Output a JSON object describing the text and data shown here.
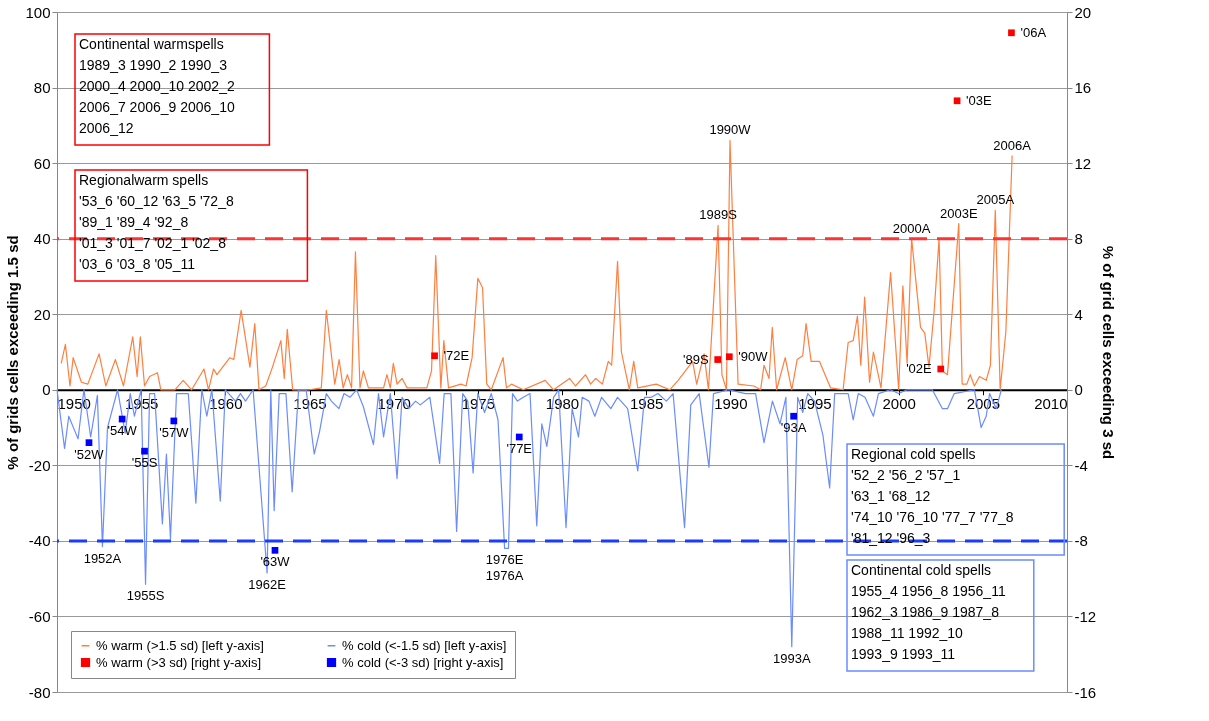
{
  "chart_data": {
    "type": "line",
    "ylabel": "% of grids cells exceeding 1.5 sd",
    "y2label": "% of grid cells exceeding 3 sd",
    "xlim": [
      1950,
      2010
    ],
    "xticks": [
      1950,
      1955,
      1960,
      1965,
      1970,
      1975,
      1980,
      1985,
      1990,
      1995,
      2000,
      2005,
      2010
    ],
    "ylim": [
      -80,
      100
    ],
    "yticks": [
      -80,
      -60,
      -40,
      -20,
      0,
      20,
      40,
      60,
      80,
      100
    ],
    "y2lim": [
      -16,
      20
    ],
    "y2ticks": [
      -16,
      -12,
      -8,
      -4,
      0,
      4,
      8,
      12,
      16,
      20
    ],
    "grid": "y",
    "legend": "bottom left",
    "series": [
      {
        "name": "% warm (>1.5 sd) [left y-axis]",
        "color": "#ff7f3f",
        "x": [
          1950.25,
          1950.5,
          1950.77,
          1950.96,
          1951.45,
          1951.83,
          1952.5,
          1952.9,
          1953.47,
          1953.95,
          1954.5,
          1954.76,
          1954.95,
          1955.2,
          1955.5,
          1955.97,
          1956.17,
          1957.0,
          1957.5,
          1958.0,
          1958.73,
          1959.0,
          1959.3,
          1959.5,
          1960.27,
          1960.5,
          1960.94,
          1961.46,
          1961.75,
          1962.0,
          1962.4,
          1962.8,
          1963.3,
          1963.5,
          1963.68,
          1964.0,
          1965.0,
          1965.7,
          1966.0,
          1966.5,
          1966.76,
          1967.0,
          1967.25,
          1967.5,
          1967.73,
          1968.0,
          1968.2,
          1968.5,
          1969.4,
          1969.6,
          1969.8,
          1969.98,
          1970.2,
          1970.5,
          1970.8,
          1971.97,
          1972.25,
          1972.5,
          1972.8,
          1972.98,
          1973.26,
          1974.0,
          1974.3,
          1974.66,
          1975.0,
          1975.28,
          1975.53,
          1975.8,
          1976.5,
          1976.7,
          1977.0,
          1977.7,
          1979.0,
          1979.5,
          1980.45,
          1980.8,
          1981.4,
          1981.7,
          1982.0,
          1982.4,
          1982.75,
          1982.95,
          1983.3,
          1983.53,
          1984.0,
          1984.26,
          1984.5,
          1985.6,
          1986.4,
          1986.9,
          1987.76,
          1988.0,
          1988.44,
          1988.7,
          1989.27,
          1989.5,
          1989.77,
          1989.98,
          1990.46,
          1991.4,
          1991.8,
          1992.0,
          1992.3,
          1992.49,
          1992.75,
          1993.26,
          1993.65,
          1993.97,
          1994.3,
          1994.5,
          1994.8,
          1995.3,
          1995.67,
          1995.96,
          1996.7,
          1997.0,
          1997.3,
          1997.55,
          1997.75,
          1997.98,
          1998.27,
          1998.5,
          1998.95,
          1999.52,
          2000.0,
          2000.25,
          2000.5,
          2000.77,
          2001.3,
          2001.55,
          2001.8,
          2002.12,
          2002.4,
          2002.6,
          2002.9,
          2003.57,
          2003.77,
          2004.05,
          2004.25,
          2004.5,
          2004.8,
          2005.2,
          2005.45,
          2005.74,
          2006.03,
          2006.37,
          2006.74
        ],
        "values": [
          7,
          12,
          1,
          8.5,
          2,
          1.5,
          9.5,
          1,
          8,
          1,
          14,
          3.5,
          14,
          1,
          3.5,
          4.5,
          0,
          0,
          2.5,
          0,
          5.5,
          0,
          5.5,
          4,
          8.5,
          8,
          21,
          6,
          17.5,
          0,
          1,
          6,
          13,
          3,
          16,
          0,
          0,
          0.5,
          21,
          1.5,
          8,
          0.5,
          4,
          0.5,
          36.5,
          0.5,
          5,
          0.5,
          0.5,
          4,
          0.5,
          7,
          1.5,
          3,
          0.5,
          0.5,
          5,
          35.5,
          0.5,
          13,
          0.5,
          1.5,
          1,
          8.5,
          29.5,
          27,
          1.5,
          0,
          8.5,
          0.5,
          1.5,
          0,
          2.5,
          0,
          3,
          1,
          4,
          1.5,
          3,
          1.5,
          7.5,
          6.5,
          34,
          10,
          0,
          7.5,
          0.5,
          1.5,
          0,
          2.5,
          7.5,
          1.5,
          9.5,
          0,
          43.5,
          4,
          0,
          66,
          1.5,
          1,
          0,
          6.5,
          3,
          16.5,
          0,
          8.5,
          0,
          8,
          9,
          17.5,
          7.5,
          7.5,
          3.5,
          0.5,
          0,
          12.5,
          13,
          19.5,
          6.5,
          24.5,
          2,
          10,
          0.5,
          31,
          0,
          27.5,
          7,
          40,
          16.5,
          15,
          6,
          21.5,
          40,
          5,
          4,
          44,
          1.5,
          1.5,
          4,
          1,
          3.5,
          2.5,
          6.5,
          47.5,
          0,
          15.5,
          62
        ]
      },
      {
        "name": "% cold (<-1.5 sd) [left y-axis]",
        "color": "#6a8cff",
        "x": [
          1950.0,
          1950.45,
          1950.7,
          1951.25,
          1951.6,
          1952.0,
          1952.4,
          1952.7,
          1953.0,
          1953.6,
          1954.05,
          1954.35,
          1954.6,
          1955.0,
          1955.26,
          1955.5,
          1955.8,
          1956.26,
          1956.5,
          1956.74,
          1957.1,
          1957.8,
          1958.25,
          1958.6,
          1958.9,
          1959.2,
          1959.7,
          1960.0,
          1960.6,
          1960.9,
          1961.2,
          1961.65,
          1962.48,
          1962.7,
          1962.9,
          1963.2,
          1963.6,
          1963.97,
          1964.35,
          1964.8,
          1965.28,
          1965.6,
          1966.0,
          1966.3,
          1966.75,
          1967.05,
          1967.4,
          1967.8,
          1968.2,
          1968.8,
          1969.1,
          1969.4,
          1969.8,
          1970.2,
          1970.5,
          1970.9,
          1971.3,
          1971.58,
          1972.15,
          1972.73,
          1973.0,
          1973.4,
          1973.74,
          1974.1,
          1974.4,
          1974.72,
          1975.0,
          1975.4,
          1975.8,
          1976.2,
          1976.59,
          1976.82,
          1977.06,
          1977.35,
          1977.7,
          1978.1,
          1978.5,
          1978.8,
          1979.1,
          1979.5,
          1979.8,
          1980.24,
          1980.6,
          1980.98,
          1981.2,
          1981.6,
          1981.95,
          1982.35,
          1982.9,
          1983.3,
          1983.9,
          1984.5,
          1984.9,
          1985.3,
          1985.7,
          1986.2,
          1986.6,
          1987.28,
          1987.65,
          1988.15,
          1988.73,
          1989.0,
          1989.9,
          1990.9,
          1991.5,
          1992.0,
          1992.5,
          1992.95,
          1993.3,
          1993.65,
          1994.0,
          1994.3,
          1994.6,
          1995.0,
          1995.5,
          1995.9,
          1996.2,
          1997.0,
          1997.3,
          1997.6,
          1998.0,
          1998.5,
          1998.8,
          1999.5,
          2000.0,
          2000.5,
          2002.0,
          2002.6,
          2002.9,
          2003.3,
          2004.5,
          2004.9,
          2005.2,
          2005.4,
          2005.8,
          2006.1
        ],
        "values": [
          0,
          -15.5,
          -7,
          -13,
          0,
          -12.5,
          -1.5,
          -41.5,
          -10,
          0,
          -11.5,
          -1,
          -7,
          0,
          -51.5,
          -1,
          -1,
          -35.5,
          -17,
          -39.5,
          -1,
          -1,
          -30,
          0,
          -7,
          0,
          -29.5,
          0,
          -3,
          -1,
          -3,
          0,
          -48.5,
          0,
          -32,
          -1,
          -1,
          -27,
          0,
          0,
          -17,
          -11,
          -1,
          -3,
          -5,
          -1,
          -2,
          0,
          -4.5,
          -14.5,
          -1,
          -12.5,
          -1,
          -23.5,
          -2,
          -5,
          -3,
          -4,
          -2,
          -19.5,
          -1,
          -1,
          -37.5,
          -1,
          -3,
          -22,
          -1,
          -6,
          -1,
          -8,
          -42,
          -42,
          -1,
          -3,
          -2,
          -1,
          -36,
          -9,
          -15,
          -2,
          0,
          -36.5,
          -5,
          -12.5,
          -2,
          -3,
          -7,
          -2,
          -5,
          -2,
          -5,
          -21.5,
          -2,
          -2,
          -1,
          -3,
          -1,
          -36.5,
          -4,
          -1,
          -20.5,
          -1,
          0,
          -1,
          -1,
          -14,
          -3,
          -9,
          -2,
          -68,
          -2,
          -6,
          -1,
          -3,
          -12,
          -26,
          -1,
          -1,
          -8,
          -1,
          -2,
          -7,
          -1,
          0,
          -1,
          0,
          0,
          -5,
          -5,
          -1,
          0,
          -10,
          -7,
          -1,
          -5,
          0
        ]
      },
      {
        "name": "% warm (>3 sd) [right y-axis]",
        "type": "scatter",
        "axis": "y2",
        "marker": "square",
        "color": "#ff0000",
        "x": [
          1972.43,
          1989.25,
          1989.94,
          2002.5,
          2003.47,
          2006.7
        ],
        "values": [
          1.8,
          1.6,
          1.75,
          1.1,
          15.3,
          18.9
        ]
      },
      {
        "name": "% cold (<-3 sd) [right y-axis]",
        "type": "scatter",
        "axis": "y2",
        "marker": "square",
        "color": "#0000ff",
        "x": [
          1951.9,
          1953.87,
          1955.2,
          1956.94,
          1962.95,
          1977.46,
          1993.76
        ],
        "values": [
          -2.8,
          -1.55,
          -3.25,
          -1.65,
          -8.5,
          -2.5,
          -1.4
        ]
      }
    ],
    "ref_lines": [
      {
        "axis": "y",
        "value": 40,
        "color": "#ff3333",
        "line_style": "dashed"
      },
      {
        "axis": "y",
        "value": -40,
        "color": "#1a3cff",
        "line_style": "dashed"
      }
    ],
    "annotations": [
      "Continental warmspells\n1989_3   1990_2  1990_3\n2000_4   2000_10 2002_2\n2006_7   2006_9  2006_10\n2006_12",
      "Regionalwarm spells\n'53_6   '60_12 '63_5   '72_8\n'89_1   '89_4   '92_8\n'01_3   '01_7   '02_1   '02_8\n'03_6   '03_8   '05_11",
      "Regional cold spells\n'52_2   '56_2   '57_1\n'63_1   '68_12\n'74_10 '76_10 '77_7   '77_8\n'81_12 '96_3",
      "Continental cold spells\n1955_4  1956_8  1956_11\n1962_3  1986_9  1987_8\n1988_11 1992_10\n1993_9  1993_11",
      {
        "text": "1990W",
        "x": 1989.98,
        "y": 66
      },
      {
        "text": "1989S",
        "x": 1989.27,
        "y": 43.5
      },
      {
        "text": "2000A",
        "x": 2000.77,
        "y": 40
      },
      {
        "text": "2003E",
        "x": 2003.57,
        "y": 44
      },
      {
        "text": "2005A",
        "x": 2005.74,
        "y": 47.5
      },
      {
        "text": "2006A",
        "x": 2006.74,
        "y": 62
      },
      {
        "text": "'06A",
        "x": 2006.7,
        "y": 94.5
      },
      {
        "text": "'03E",
        "x": 2003.47,
        "y": 76.5
      },
      {
        "text": "'72E",
        "x": 1972.43,
        "y": 9
      },
      {
        "text": "'89S",
        "x": 1989.25,
        "y": 8
      },
      {
        "text": "'90W",
        "x": 1989.94,
        "y": 8.75
      },
      {
        "text": "'02E",
        "x": 2002.5,
        "y": 5.5
      },
      {
        "text": "'52W",
        "x": 1951.9,
        "y": -14
      },
      {
        "text": "'54W",
        "x": 1953.87,
        "y": -7.75
      },
      {
        "text": "'55S",
        "x": 1955.2,
        "y": -16.25
      },
      {
        "text": "'57W",
        "x": 1956.94,
        "y": -8.25
      },
      {
        "text": "'63W",
        "x": 1962.95,
        "y": -42.5
      },
      {
        "text": "'77E",
        "x": 1977.46,
        "y": -12.5
      },
      {
        "text": "'93A",
        "x": 1993.76,
        "y": -7
      },
      {
        "text": "1952A",
        "x": 1952.7,
        "y": -41.5
      },
      {
        "text": "1955S",
        "x": 1955.26,
        "y": -51.5
      },
      {
        "text": "1962E",
        "x": 1962.48,
        "y": -48.5
      },
      {
        "text": "1976E\n1976A",
        "x": 1976.59,
        "y": -42
      },
      {
        "text": "1993A",
        "x": 1993.65,
        "y": -68
      }
    ]
  }
}
